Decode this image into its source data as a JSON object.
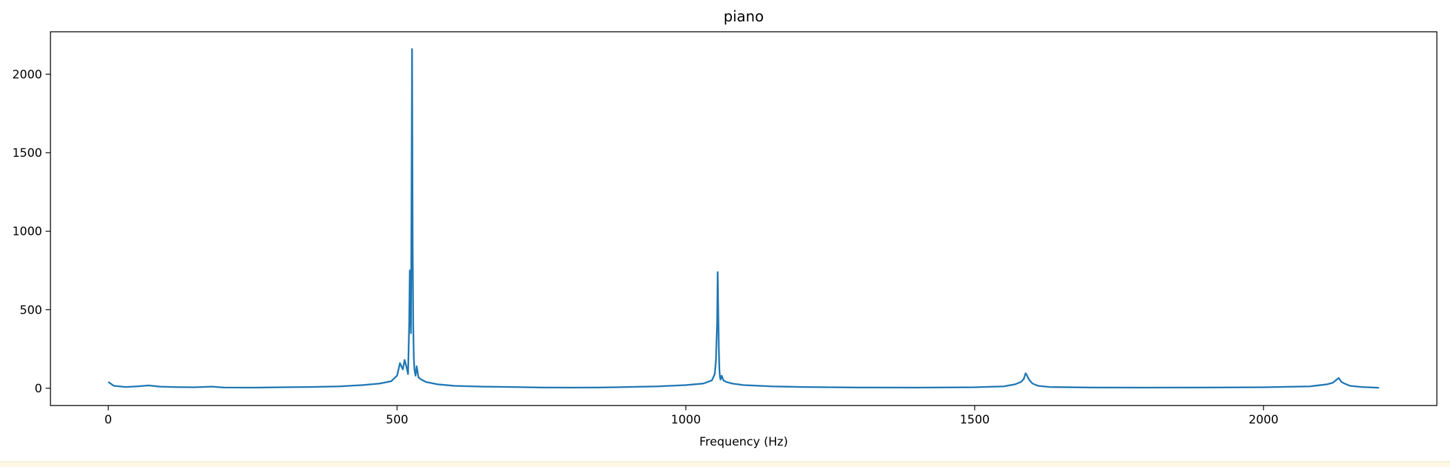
{
  "chart_data": {
    "type": "line",
    "title": "piano",
    "xlabel": "Frequency (Hz)",
    "ylabel": "",
    "xlim": [
      -100,
      2300
    ],
    "ylim": [
      -110,
      2270
    ],
    "x_ticks": [
      0,
      500,
      1000,
      1500,
      2000
    ],
    "y_ticks": [
      0,
      500,
      1000,
      1500,
      2000
    ],
    "x_tick_labels": [
      "0",
      "500",
      "1000",
      "1500",
      "2000"
    ],
    "y_tick_labels": [
      "0",
      "500",
      "1000",
      "1500",
      "2000"
    ],
    "grid": false,
    "legend": "none",
    "line_color": "#1f77b4",
    "series": [
      {
        "x": [
          0,
          10,
          20,
          30,
          50,
          70,
          90,
          110,
          150,
          180,
          200,
          250,
          300,
          350,
          400,
          440,
          470,
          490,
          500,
          505,
          510,
          513,
          516,
          519,
          520,
          521,
          522,
          523,
          524,
          525,
          526,
          527,
          528,
          529,
          530,
          532,
          534,
          537,
          540,
          550,
          570,
          600,
          650,
          700,
          750,
          800,
          850,
          900,
          950,
          1000,
          1030,
          1045,
          1050,
          1052,
          1054,
          1055,
          1056,
          1057,
          1058,
          1059,
          1060,
          1062,
          1065,
          1070,
          1080,
          1100,
          1150,
          1200,
          1300,
          1400,
          1500,
          1550,
          1570,
          1580,
          1585,
          1588,
          1590,
          1592,
          1595,
          1600,
          1610,
          1630,
          1700,
          1800,
          1900,
          2000,
          2080,
          2110,
          2120,
          2125,
          2130,
          2135,
          2140,
          2150,
          2170,
          2200
        ],
        "y": [
          40,
          15,
          12,
          8,
          12,
          18,
          10,
          8,
          6,
          10,
          5,
          4,
          6,
          8,
          12,
          20,
          30,
          45,
          80,
          160,
          120,
          180,
          140,
          90,
          250,
          420,
          750,
          600,
          350,
          1200,
          2160,
          900,
          400,
          200,
          120,
          80,
          140,
          70,
          60,
          40,
          25,
          15,
          10,
          8,
          5,
          4,
          5,
          8,
          12,
          20,
          30,
          50,
          90,
          180,
          420,
          740,
          500,
          250,
          120,
          70,
          55,
          80,
          50,
          40,
          30,
          20,
          12,
          8,
          5,
          4,
          6,
          12,
          25,
          40,
          60,
          95,
          85,
          70,
          50,
          30,
          15,
          8,
          5,
          4,
          5,
          6,
          12,
          25,
          35,
          50,
          65,
          40,
          30,
          15,
          8,
          3
        ]
      }
    ]
  }
}
